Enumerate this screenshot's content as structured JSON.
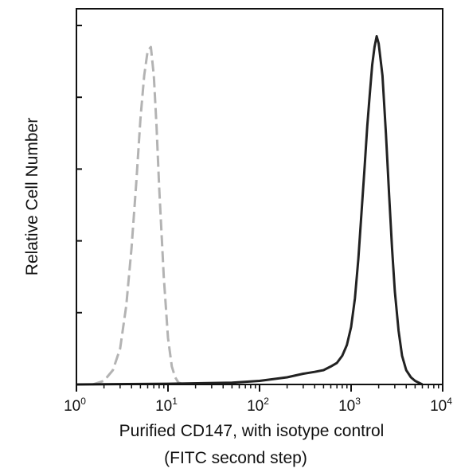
{
  "chart_data": {
    "type": "line",
    "xlabel_line1": "Purified CD147, with isotype control",
    "xlabel_line2": "(FITC second step)",
    "ylabel": "Relative Cell Number",
    "x_scale": "log",
    "xlim": [
      1,
      10000
    ],
    "ylim": [
      0,
      1
    ],
    "x_ticks": [
      {
        "base": "10",
        "exp": "0",
        "value": 1
      },
      {
        "base": "10",
        "exp": "1",
        "value": 10
      },
      {
        "base": "10",
        "exp": "2",
        "value": 100
      },
      {
        "base": "10",
        "exp": "3",
        "value": 1000
      },
      {
        "base": "10",
        "exp": "4",
        "value": 10000
      }
    ],
    "y_tick_values": [
      0,
      0.2,
      0.4,
      0.6,
      0.8,
      1.0
    ],
    "grid": false,
    "legend": "none",
    "series": [
      {
        "style": "dashed",
        "color": "#b3b3b3",
        "x": [
          1.5,
          2.0,
          2.5,
          3.0,
          3.5,
          4.0,
          4.5,
          5.0,
          5.5,
          6.0,
          6.5,
          7.0,
          7.5,
          8.0,
          9.0,
          10.0,
          11.0,
          12.0,
          13.0,
          15.0
        ],
        "y": [
          0.0,
          0.01,
          0.04,
          0.1,
          0.22,
          0.38,
          0.56,
          0.74,
          0.86,
          0.93,
          0.94,
          0.86,
          0.72,
          0.55,
          0.3,
          0.13,
          0.05,
          0.02,
          0.005,
          0.0
        ]
      },
      {
        "style": "solid",
        "color": "#222222",
        "x": [
          1,
          10,
          50,
          100,
          200,
          300,
          400,
          500,
          600,
          700,
          800,
          900,
          1000,
          1100,
          1200,
          1300,
          1400,
          1500,
          1600,
          1700,
          1800,
          1900,
          2000,
          2200,
          2400,
          2600,
          2800,
          3000,
          3300,
          3600,
          4000,
          4500,
          5000,
          6000
        ],
        "y": [
          0.0,
          0.002,
          0.005,
          0.01,
          0.02,
          0.03,
          0.035,
          0.04,
          0.05,
          0.06,
          0.08,
          0.11,
          0.16,
          0.24,
          0.35,
          0.48,
          0.6,
          0.72,
          0.81,
          0.89,
          0.94,
          0.97,
          0.95,
          0.86,
          0.7,
          0.53,
          0.38,
          0.26,
          0.15,
          0.08,
          0.04,
          0.02,
          0.01,
          0.0
        ]
      }
    ]
  }
}
